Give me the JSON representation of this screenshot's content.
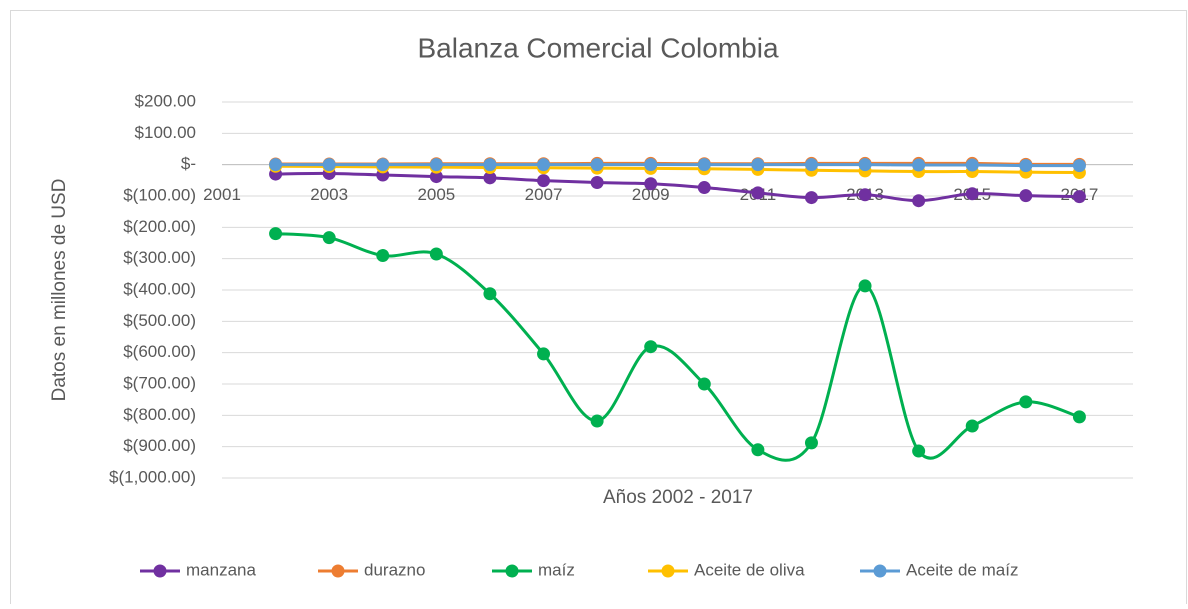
{
  "chart_data": {
    "type": "line",
    "title": "Balanza Comercial Colombia",
    "xlabel": "Años 2002 - 2017",
    "ylabel": "Datos en millones de USD",
    "x": [
      2002,
      2003,
      2004,
      2005,
      2006,
      2007,
      2008,
      2009,
      2010,
      2011,
      2012,
      2013,
      2014,
      2015,
      2016,
      2017
    ],
    "series": [
      {
        "name": "manzana",
        "color": "#7030a0",
        "values": [
          -30,
          -28,
          -33,
          -38,
          -42,
          -51,
          -57,
          -61,
          -73,
          -90,
          -105,
          -96,
          -115,
          -93,
          -99,
          -102
        ]
      },
      {
        "name": "durazno",
        "color": "#ed7d31",
        "values": [
          2,
          2,
          2,
          3,
          3,
          3,
          4,
          4,
          3,
          3,
          4,
          4,
          4,
          4,
          1,
          1
        ]
      },
      {
        "name": "maíz",
        "color": "#00b050",
        "values": [
          -220,
          -233,
          -290,
          -285,
          -412,
          -604,
          -818,
          -581,
          -700,
          -910,
          -888,
          -387,
          -914,
          -834,
          -757,
          -805
        ]
      },
      {
        "name": "Aceite de oliva",
        "color": "#ffc000",
        "values": [
          -5,
          -6,
          -7,
          -8,
          -9,
          -10,
          -11,
          -12,
          -13,
          -15,
          -18,
          -20,
          -22,
          -22,
          -24,
          -25
        ]
      },
      {
        "name": "Aceite de maíz",
        "color": "#5b9bd5",
        "values": [
          0,
          0,
          0,
          0,
          0,
          0,
          0,
          0,
          0,
          0,
          0,
          0,
          -1,
          -1,
          -3,
          -3
        ]
      }
    ],
    "xlim": [
      2001,
      2018
    ],
    "xticks": [
      2001,
      2003,
      2005,
      2007,
      2009,
      2011,
      2013,
      2015,
      2017
    ],
    "ylim": [
      -1000,
      200
    ],
    "yticks": [
      {
        "value": 200,
        "label": "$200.00"
      },
      {
        "value": 100,
        "label": "$100.00"
      },
      {
        "value": 0,
        "label": "$-"
      },
      {
        "value": -100,
        "label": "$(100.00)"
      },
      {
        "value": -200,
        "label": "$(200.00)"
      },
      {
        "value": -300,
        "label": "$(300.00)"
      },
      {
        "value": -400,
        "label": "$(400.00)"
      },
      {
        "value": -500,
        "label": "$(500.00)"
      },
      {
        "value": -600,
        "label": "$(600.00)"
      },
      {
        "value": -700,
        "label": "$(700.00)"
      },
      {
        "value": -800,
        "label": "$(800.00)"
      },
      {
        "value": -900,
        "label": "$(900.00)"
      },
      {
        "value": -1000,
        "label": "$(1,000.00)"
      }
    ],
    "grid": true,
    "legend": "bottom",
    "smooth": true
  }
}
